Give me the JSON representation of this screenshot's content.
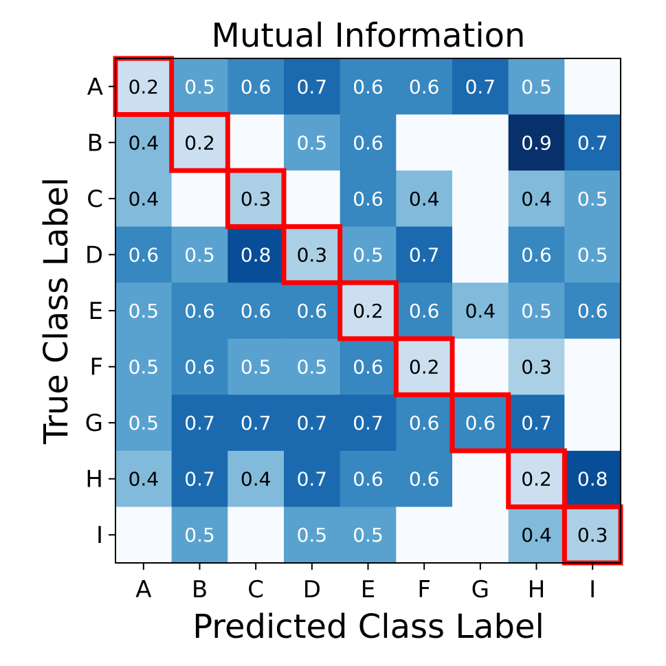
{
  "chart_data": {
    "type": "heatmap",
    "title": "Mutual Information",
    "xlabel": "Predicted Class Label",
    "ylabel": "True Class Label",
    "x_categories": [
      "A",
      "B",
      "C",
      "D",
      "E",
      "F",
      "G",
      "H",
      "I"
    ],
    "y_categories": [
      "A",
      "B",
      "C",
      "D",
      "E",
      "F",
      "G",
      "H",
      "I"
    ],
    "values": [
      [
        0.2,
        0.5,
        0.6,
        0.7,
        0.6,
        0.6,
        0.7,
        0.5,
        null
      ],
      [
        0.4,
        0.2,
        null,
        0.5,
        0.6,
        null,
        null,
        0.9,
        0.7
      ],
      [
        0.4,
        null,
        0.3,
        null,
        0.6,
        0.4,
        null,
        0.4,
        0.5
      ],
      [
        0.6,
        0.5,
        0.8,
        0.3,
        0.5,
        0.7,
        null,
        0.6,
        0.5
      ],
      [
        0.5,
        0.6,
        0.6,
        0.6,
        0.2,
        0.6,
        0.4,
        0.5,
        0.6
      ],
      [
        0.5,
        0.6,
        0.5,
        0.5,
        0.6,
        0.2,
        null,
        0.3,
        null
      ],
      [
        0.5,
        0.7,
        0.7,
        0.7,
        0.7,
        0.6,
        0.6,
        0.7,
        null
      ],
      [
        0.4,
        0.7,
        0.4,
        0.7,
        0.6,
        0.6,
        null,
        0.2,
        0.8
      ],
      [
        null,
        0.5,
        null,
        0.5,
        0.5,
        null,
        null,
        0.4,
        0.3
      ]
    ],
    "color_range": [
      0,
      0.9
    ],
    "colormap": "Blues",
    "diagonal_highlight_color": "#ff0000",
    "grid": false
  }
}
